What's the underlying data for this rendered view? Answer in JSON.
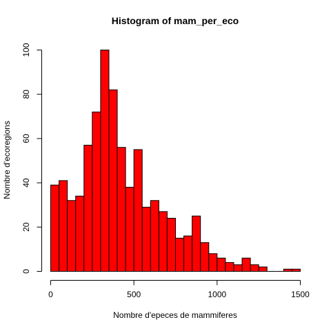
{
  "chart_data": {
    "type": "bar",
    "title": "Histogram of mam_per_eco",
    "xlabel": "Nombre d'epeces de mammiferes",
    "ylabel": "Nombre d'ecoregions",
    "bin_width": 50,
    "bin_start": 0,
    "values": [
      39,
      41,
      32,
      34,
      57,
      72,
      100,
      82,
      56,
      38,
      55,
      29,
      32,
      27,
      24,
      15,
      16,
      25,
      13,
      8,
      6,
      4,
      3,
      6,
      3,
      2,
      0,
      0,
      1,
      1
    ],
    "xlim": [
      0,
      1500
    ],
    "ylim": [
      0,
      100
    ],
    "xticks": [
      "0",
      "500",
      "1000",
      "1500"
    ],
    "yticks": [
      "0",
      "20",
      "40",
      "60",
      "80",
      "100"
    ],
    "bar_color": "#ff0000",
    "grid": false
  }
}
